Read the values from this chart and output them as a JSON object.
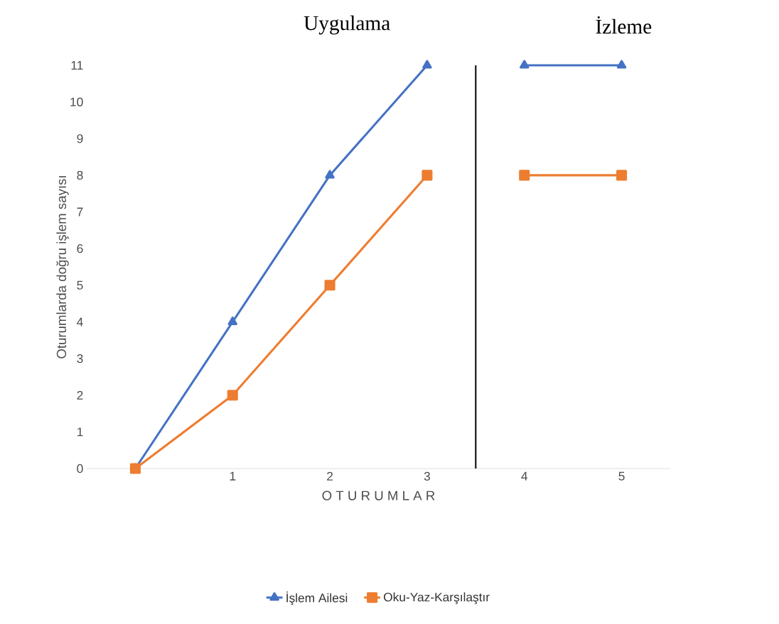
{
  "chart_data": {
    "type": "line",
    "xlabel": "O T U R U M L A R",
    "ylabel": "Oturumlarda doğru işlem sayısı",
    "categories": [
      null,
      "1",
      "2",
      "3",
      "4",
      "5"
    ],
    "series": [
      {
        "name": "İşlem Ailesi",
        "color": "#4472c4",
        "marker": "triangle",
        "values": [
          0,
          4,
          8,
          11,
          null,
          null
        ]
      },
      {
        "name": "Oku-Yaz-Karşılaştır",
        "color": "#ed7d31",
        "marker": "square",
        "values": [
          0,
          2,
          5,
          8,
          null,
          null
        ]
      },
      {
        "color": "#4472c4",
        "marker": "triangle",
        "values": [
          null,
          null,
          null,
          null,
          11,
          11
        ]
      },
      {
        "color": "#ed7d31",
        "marker": "square",
        "values": [
          null,
          null,
          null,
          null,
          8,
          8
        ]
      }
    ],
    "ylim": [
      0,
      11
    ],
    "yticks": [
      0,
      1,
      2,
      3,
      4,
      5,
      6,
      7,
      8,
      9,
      10,
      11
    ],
    "annotations": [
      "Uygulama",
      "İzleme"
    ],
    "legend": "bottom",
    "grid": false,
    "line_style": "solid"
  }
}
